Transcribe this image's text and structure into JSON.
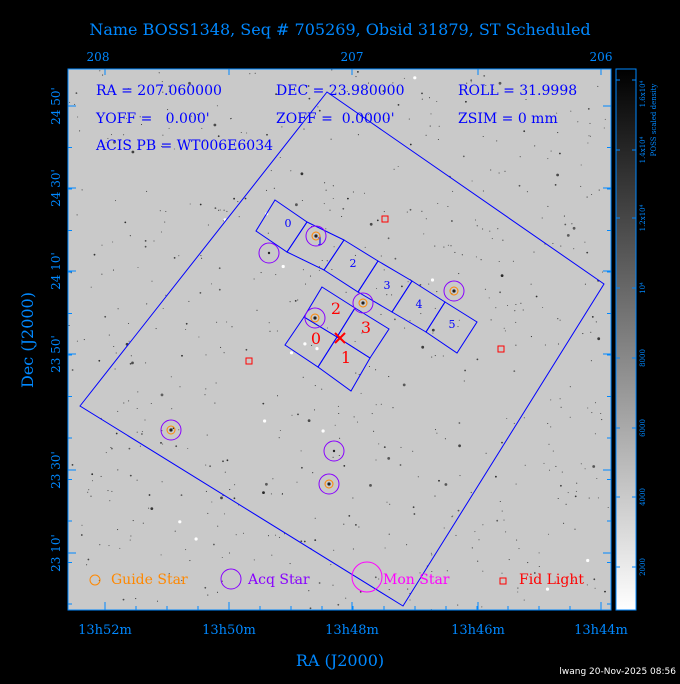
{
  "title": "Name BOSS1348, Seq # 705269, Obsid 31879, ST Scheduled",
  "info": {
    "ra": "RA = 207.060000",
    "dec": "DEC = 23.980000",
    "roll": "ROLL = 31.9998",
    "yoff": "YOFF =   0.000'",
    "zoff": "ZOFF =  0.0000'",
    "zsim": "ZSIM = 0 mm",
    "acis": "ACIS PB = WT006E6034"
  },
  "axes": {
    "xlabel": "RA (J2000)",
    "ylabel": "Dec (J2000)",
    "bottom_ticks": [
      "13h52m",
      "13h50m",
      "13h48m",
      "13h46m",
      "13h44m"
    ],
    "top_ticks": [
      "208",
      "207",
      "206"
    ],
    "left_ticks": [
      "24 50'",
      "24 30'",
      "24 10'",
      "23 50'",
      "23 30'",
      "23 10'"
    ]
  },
  "colorbar": {
    "label": "POSS scaled density",
    "ticks": [
      "2000",
      "4000",
      "6000",
      "8000",
      "10⁴",
      "1.2x10⁴",
      "1.4x10⁴",
      "1.6x10⁴"
    ]
  },
  "chips": {
    "i_labels": [
      "0",
      "1",
      "2",
      "3"
    ],
    "s_labels": [
      "0",
      "1",
      "2",
      "3",
      "4",
      "5"
    ]
  },
  "legend": {
    "guide": "Guide Star",
    "acq": "Acq Star",
    "mon": "Mon Star",
    "fid": "Fid Light"
  },
  "stamp": "lwang 20-Nov-2025 08:56",
  "colors": {
    "label": "#0088ff",
    "frame": "#0000ff",
    "guide": "#ff8800",
    "acq": "#8800ff",
    "mon": "#ff00ff",
    "fid": "#ff0000",
    "background": "#000000"
  }
}
